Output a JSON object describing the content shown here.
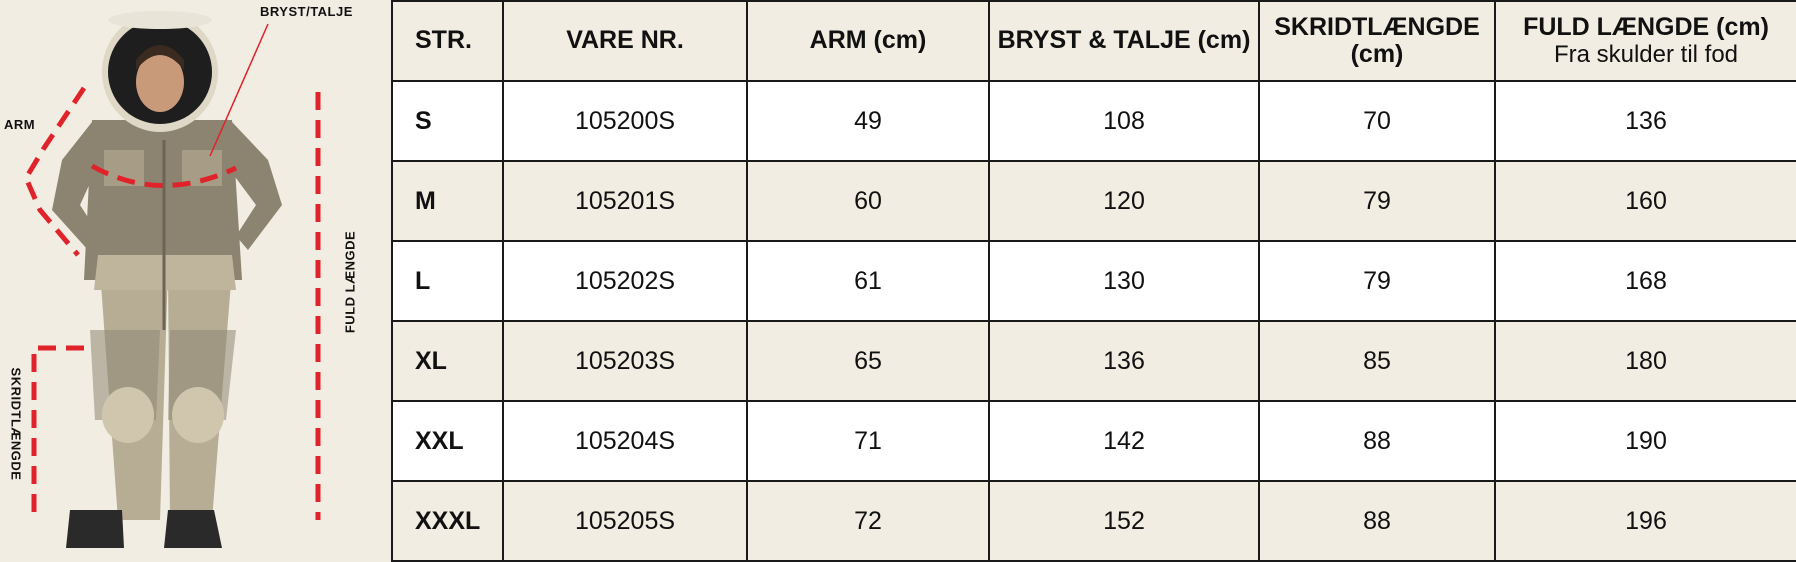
{
  "figure": {
    "labels": {
      "chest_waist": "BRYST/TALJE",
      "arm": "ARM",
      "full_length": "FULD LÆNGDE",
      "inseam": "SKRIDTLÆNGDE"
    },
    "measure_line_color": "#e0232a"
  },
  "table": {
    "headers": {
      "size": "STR.",
      "item_no": "VARE NR.",
      "arm": "ARM (cm)",
      "chest_waist": "BRYST & TALJE (cm)",
      "inseam": "SKRIDTLÆNGDE (cm)",
      "full_length": "FULD LÆNGDE (cm)",
      "full_length_sub": "Fra skulder til fod"
    },
    "rows": [
      {
        "size": "S",
        "item_no": "105200S",
        "arm": "49",
        "chest_waist": "108",
        "inseam": "70",
        "full_length": "136"
      },
      {
        "size": "M",
        "item_no": "105201S",
        "arm": "60",
        "chest_waist": "120",
        "inseam": "79",
        "full_length": "160"
      },
      {
        "size": "L",
        "item_no": "105202S",
        "arm": "61",
        "chest_waist": "130",
        "inseam": "79",
        "full_length": "168"
      },
      {
        "size": "XL",
        "item_no": "105203S",
        "arm": "65",
        "chest_waist": "136",
        "inseam": "85",
        "full_length": "180"
      },
      {
        "size": "XXL",
        "item_no": "105204S",
        "arm": "71",
        "chest_waist": "142",
        "inseam": "88",
        "full_length": "190"
      },
      {
        "size": "XXXL",
        "item_no": "105205S",
        "arm": "72",
        "chest_waist": "152",
        "inseam": "88",
        "full_length": "196"
      }
    ]
  }
}
